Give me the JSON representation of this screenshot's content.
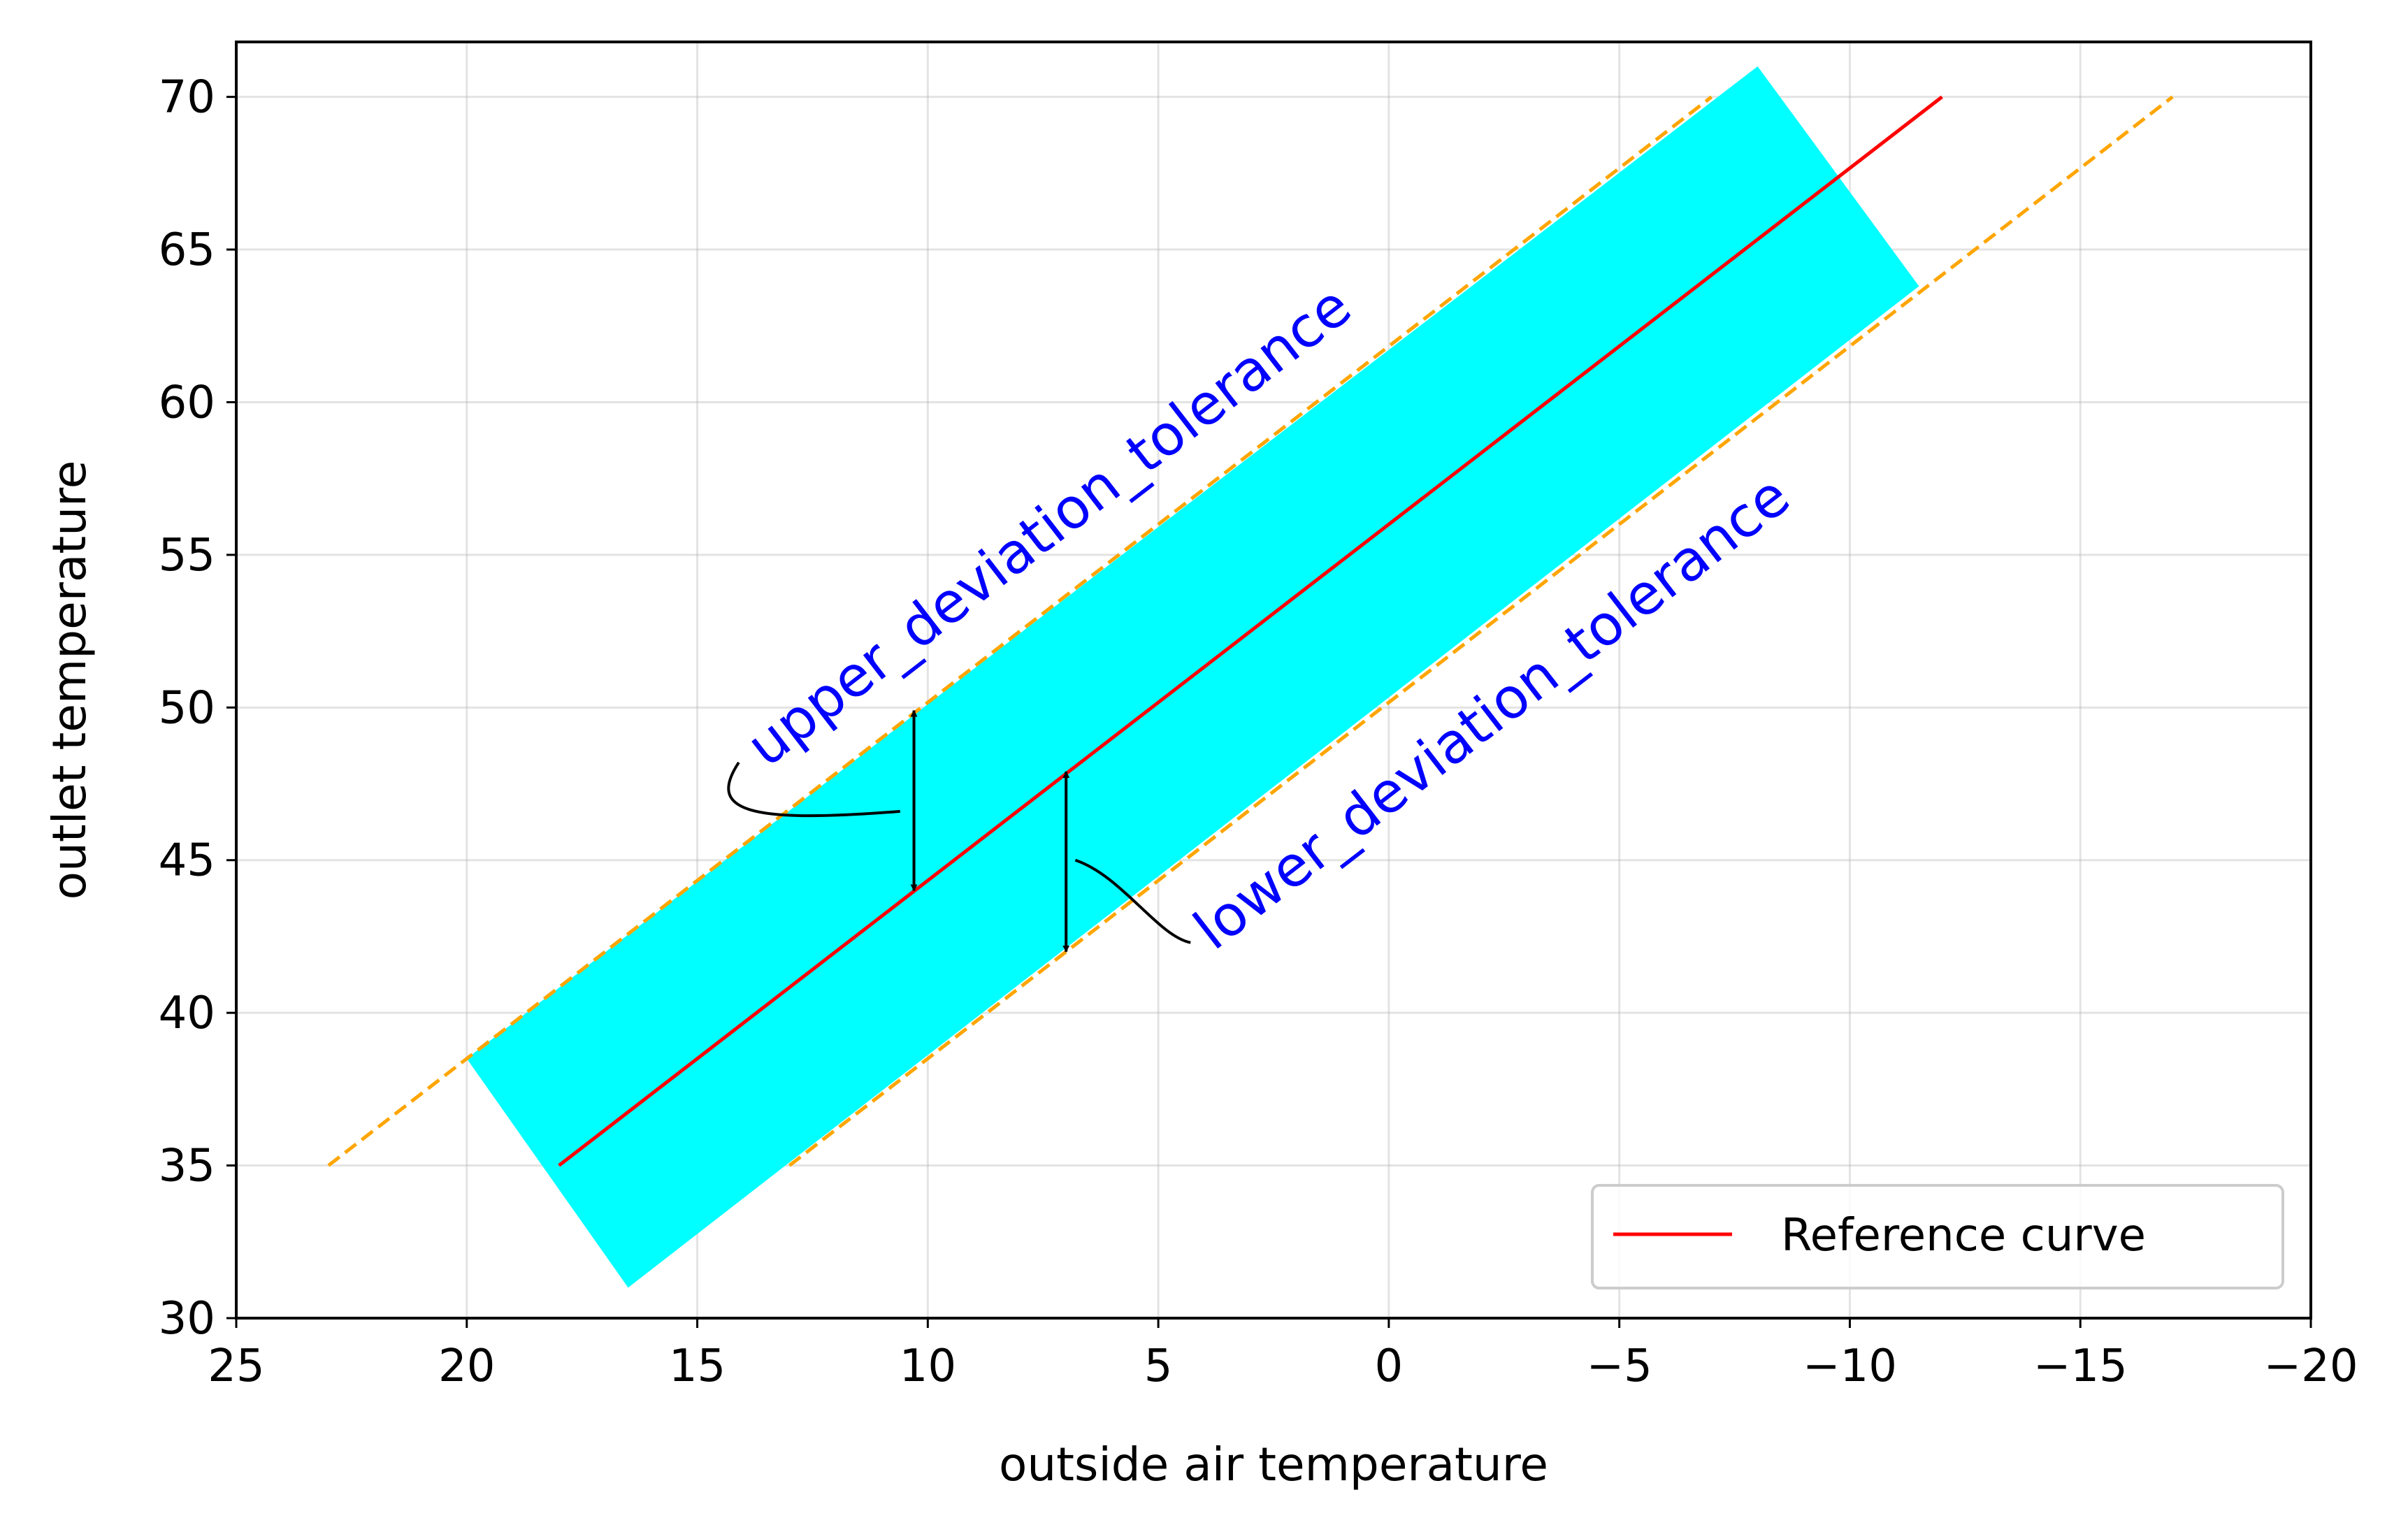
{
  "chart_data": {
    "type": "line",
    "title": "",
    "xlabel": "outside air temperature",
    "ylabel": "outlet temperature",
    "xlim": [
      25,
      -20
    ],
    "ylim": [
      30,
      71.8
    ],
    "x_inverted": true,
    "grid": true,
    "x_ticks": [
      {
        "value": 25,
        "label": "25"
      },
      {
        "value": 20,
        "label": "20"
      },
      {
        "value": 15,
        "label": "15"
      },
      {
        "value": 10,
        "label": "10"
      },
      {
        "value": 5,
        "label": "5"
      },
      {
        "value": 0,
        "label": "0"
      },
      {
        "value": -5,
        "label": "−5"
      },
      {
        "value": -10,
        "label": "−10"
      },
      {
        "value": -15,
        "label": "−15"
      },
      {
        "value": -20,
        "label": "−20"
      }
    ],
    "y_ticks": [
      {
        "value": 30,
        "label": "30"
      },
      {
        "value": 35,
        "label": "35"
      },
      {
        "value": 40,
        "label": "40"
      },
      {
        "value": 45,
        "label": "45"
      },
      {
        "value": 50,
        "label": "50"
      },
      {
        "value": 55,
        "label": "55"
      },
      {
        "value": 60,
        "label": "60"
      },
      {
        "value": 65,
        "label": "65"
      },
      {
        "value": 70,
        "label": "70"
      }
    ],
    "reference_curve": {
      "name": "Reference curve",
      "color": "#ff0000",
      "x": [
        18,
        -12
      ],
      "y": [
        35,
        70
      ]
    },
    "upper_tolerance_line": {
      "color": "#ffa500",
      "x": [
        23,
        -7
      ],
      "y": [
        35,
        70
      ]
    },
    "lower_tolerance_line": {
      "color": "#ffa500",
      "x": [
        13,
        -17
      ],
      "y": [
        35,
        70
      ]
    },
    "tolerance_band": {
      "color": "#00ffff",
      "polygon": [
        [
          20,
          38.5
        ],
        [
          -8,
          71
        ],
        [
          -11.5,
          63.8
        ],
        [
          16.5,
          31
        ]
      ]
    },
    "annotations": [
      {
        "name": "upper",
        "text": "upper_deviation_tolerance",
        "color": "#0000ff",
        "text_anchor": [
          13.5,
          48
        ],
        "arrow_x": 10.3,
        "arrow_y": [
          44,
          49.9
        ],
        "connector": [
          [
            10.6,
            46.6
          ],
          [
            13.9,
            46.2
          ],
          [
            14.8,
            46.6
          ],
          [
            14.1,
            48.2
          ]
        ]
      },
      {
        "name": "lower",
        "text": "lower_deviation_tolerance",
        "color": "#0000ff",
        "text_anchor": [
          3.8,
          42
        ],
        "arrow_x": 7,
        "arrow_y": [
          42,
          47.9
        ],
        "connector": [
          [
            6.8,
            45
          ],
          [
            5.8,
            44.5
          ],
          [
            5,
            42.5
          ],
          [
            4.3,
            42.3
          ]
        ]
      }
    ],
    "legend": {
      "position": "lower-right",
      "entries": [
        {
          "label": "Reference curve",
          "color": "#ff0000"
        }
      ]
    }
  }
}
